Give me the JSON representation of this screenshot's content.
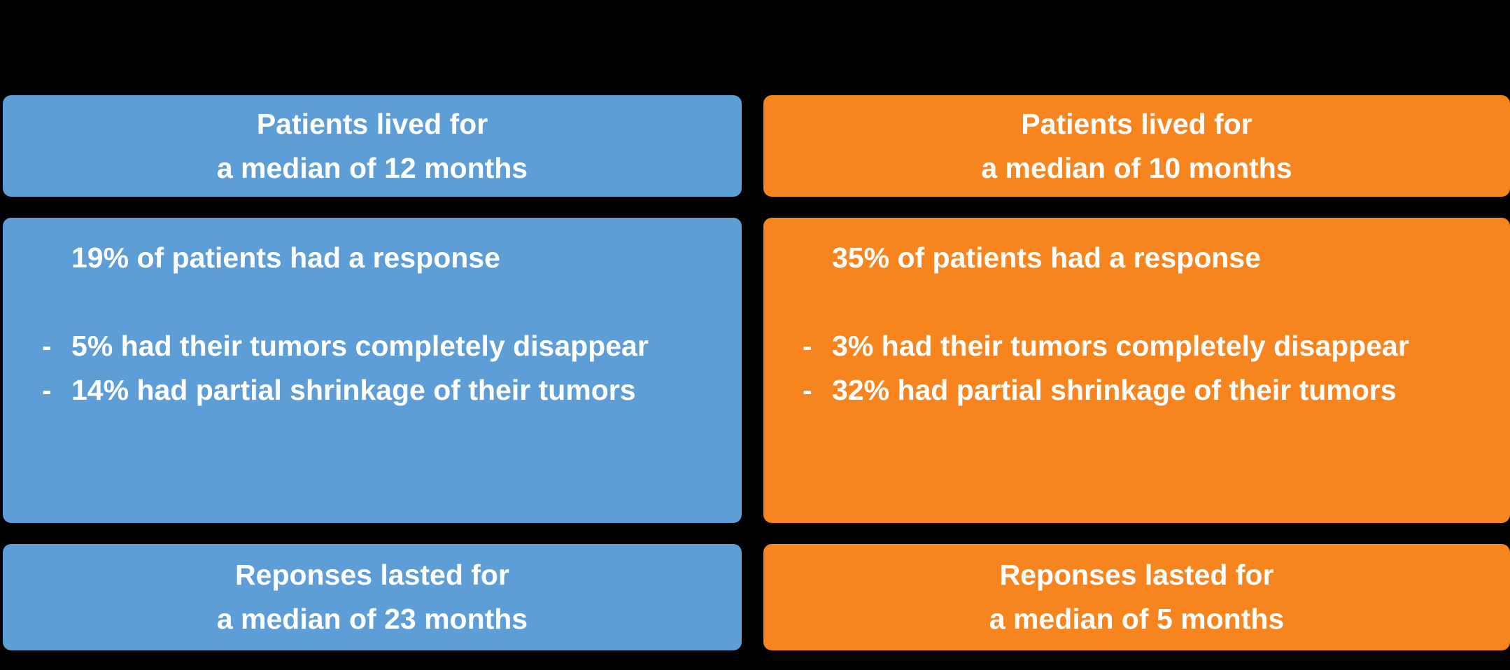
{
  "page": {
    "background": "#000000",
    "text_color": "#FFFFFF"
  },
  "colors": {
    "blue": "#5E9ED6",
    "orange": "#F6851F"
  },
  "bullet_marker": "-",
  "left_column": {
    "survival_box": {
      "line1": "Patients lived for",
      "line2": "a median of 12 months"
    },
    "response_box": {
      "headline": "19% of patients had a response",
      "bullets": [
        "5% had their tumors completely disappear",
        "14% had partial shrinkage of their tumors"
      ]
    },
    "duration_box": {
      "line1": "Reponses lasted for",
      "line2": "a median of 23 months"
    }
  },
  "right_column": {
    "survival_box": {
      "line1": "Patients lived for",
      "line2": "a median of 10 months"
    },
    "response_box": {
      "headline": "35% of patients had a response",
      "bullets": [
        "3% had their tumors completely disappear",
        "32% had partial shrinkage of their tumors"
      ]
    },
    "duration_box": {
      "line1": "Reponses lasted for",
      "line2": "a median of 5 months"
    }
  }
}
